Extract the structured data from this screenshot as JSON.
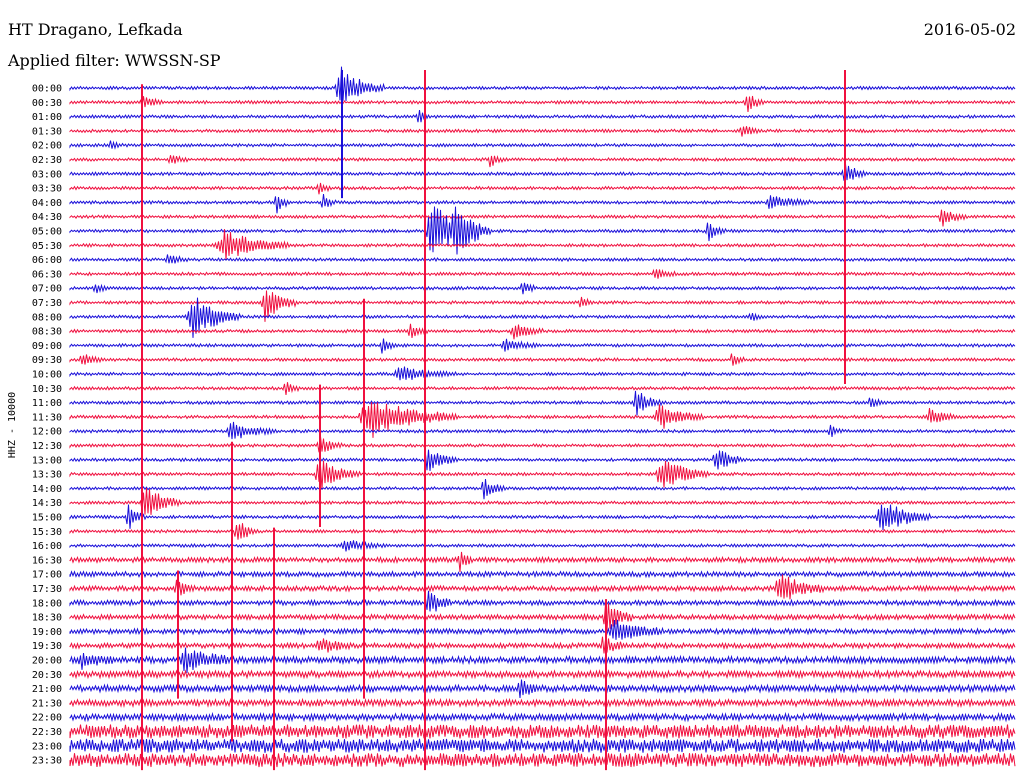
{
  "header": {
    "station": "HT Dragano, Lefkada",
    "filter": "Applied filter: WWSSN-SP",
    "date": "2016-05-02"
  },
  "colors": {
    "blue": "#1a0fd9",
    "red": "#f0103f"
  },
  "chart_data": {
    "type": "line",
    "title": "HT Dragano, Lefkada",
    "subtitle": "Applied filter: WWSSN-SP",
    "ylabel": "HHZ - 10000",
    "tick_labels": [
      "00:00",
      "00:30",
      "01:00",
      "01:30",
      "02:00",
      "02:30",
      "03:00",
      "03:30",
      "04:00",
      "04:30",
      "05:00",
      "05:30",
      "06:00",
      "06:30",
      "07:00",
      "07:30",
      "08:00",
      "08:30",
      "09:00",
      "09:30",
      "10:00",
      "10:30",
      "11:00",
      "11:30",
      "12:00",
      "12:30",
      "13:00",
      "13:30",
      "14:00",
      "14:30",
      "15:00",
      "15:30",
      "16:00",
      "16:30",
      "17:00",
      "17:30",
      "18:00",
      "18:30",
      "19:00",
      "19:30",
      "20:00",
      "20:30",
      "21:00",
      "21:30",
      "22:00",
      "22:30",
      "23:00",
      "23:30"
    ],
    "series_colors": [
      "blue",
      "red"
    ],
    "grid": false
  }
}
